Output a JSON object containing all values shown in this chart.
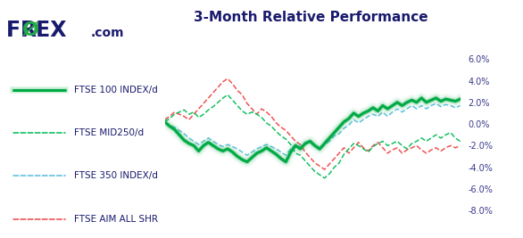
{
  "title": "3-Month Relative Performance",
  "title_fontsize": 11,
  "title_color": "#1a1a6e",
  "background_color": "#ffffff",
  "ylabel_color": "#3a3a8c",
  "yticks": [
    -8.0,
    -6.0,
    -4.0,
    -2.0,
    0.0,
    2.0,
    4.0,
    6.0
  ],
  "ylim": [
    -9.0,
    7.5
  ],
  "n_points": 62,
  "legend_items": [
    {
      "label": "FTSE 100 INDEX/d",
      "color": "#00aa44",
      "linestyle": "-",
      "linewidth": 2.2
    },
    {
      "label": "FTSE MID250/d",
      "color": "#00bb55",
      "linestyle": "--",
      "linewidth": 1.1
    },
    {
      "label": "FTSE 350 INDEX/d",
      "color": "#55bbdd",
      "linestyle": "--",
      "linewidth": 1.1
    },
    {
      "label": "FTSE AIM ALL SHR",
      "color": "#ee4444",
      "linestyle": "--",
      "linewidth": 1.1
    }
  ],
  "ftse100_data": [
    0.2,
    -0.2,
    -0.5,
    -1.0,
    -1.5,
    -1.8,
    -2.0,
    -2.5,
    -2.0,
    -1.7,
    -2.0,
    -2.3,
    -2.5,
    -2.3,
    -2.6,
    -3.0,
    -3.3,
    -3.5,
    -3.1,
    -2.7,
    -2.5,
    -2.2,
    -2.5,
    -2.8,
    -3.2,
    -3.5,
    -2.6,
    -2.0,
    -2.3,
    -1.8,
    -1.6,
    -2.0,
    -2.3,
    -1.8,
    -1.3,
    -0.8,
    -0.3,
    0.2,
    0.5,
    1.0,
    0.7,
    1.0,
    1.2,
    1.5,
    1.2,
    1.7,
    1.4,
    1.7,
    2.0,
    1.7,
    2.0,
    2.2,
    2.0,
    2.4,
    2.0,
    2.2,
    2.4,
    2.1,
    2.3,
    2.2,
    2.1,
    2.3
  ],
  "ftse_mid250_data": [
    0.2,
    0.5,
    0.9,
    1.1,
    1.3,
    0.9,
    1.1,
    0.6,
    0.9,
    1.3,
    1.6,
    2.0,
    2.4,
    2.7,
    2.2,
    1.7,
    1.2,
    0.9,
    1.1,
    0.9,
    0.6,
    0.1,
    -0.2,
    -0.7,
    -1.1,
    -1.4,
    -1.9,
    -2.7,
    -2.9,
    -3.4,
    -3.9,
    -4.4,
    -4.7,
    -5.0,
    -4.6,
    -4.0,
    -3.6,
    -2.8,
    -2.3,
    -1.8,
    -2.0,
    -2.3,
    -2.6,
    -2.1,
    -1.8,
    -1.6,
    -2.0,
    -1.8,
    -1.6,
    -2.0,
    -2.3,
    -1.8,
    -1.6,
    -1.3,
    -1.6,
    -1.3,
    -1.0,
    -1.3,
    -1.0,
    -0.8,
    -1.3,
    -1.6
  ],
  "ftse350_data": [
    0.1,
    -0.1,
    -0.3,
    -0.6,
    -0.9,
    -1.3,
    -1.6,
    -1.9,
    -1.6,
    -1.3,
    -1.6,
    -1.9,
    -2.1,
    -1.9,
    -2.1,
    -2.3,
    -2.6,
    -2.9,
    -2.6,
    -2.3,
    -2.1,
    -1.9,
    -2.1,
    -2.3,
    -2.6,
    -2.9,
    -2.3,
    -1.9,
    -2.1,
    -1.9,
    -1.6,
    -2.1,
    -2.4,
    -1.9,
    -1.6,
    -1.1,
    -0.9,
    -0.4,
    -0.1,
    0.4,
    0.1,
    0.4,
    0.7,
    0.9,
    0.7,
    1.1,
    0.7,
    1.1,
    1.4,
    1.1,
    1.4,
    1.7,
    1.4,
    1.7,
    1.4,
    1.7,
    1.9,
    1.6,
    1.8,
    1.7,
    1.5,
    1.7
  ],
  "ftse_aim_data": [
    0.4,
    0.7,
    1.1,
    0.9,
    0.7,
    0.4,
    0.9,
    1.4,
    1.9,
    2.4,
    2.9,
    3.4,
    3.9,
    4.2,
    3.7,
    3.1,
    2.7,
    1.9,
    1.4,
    0.9,
    1.4,
    1.1,
    0.7,
    0.1,
    -0.3,
    -0.6,
    -1.1,
    -1.6,
    -1.9,
    -2.6,
    -3.1,
    -3.6,
    -3.9,
    -4.2,
    -3.7,
    -3.2,
    -2.7,
    -2.2,
    -2.7,
    -2.2,
    -1.7,
    -2.2,
    -2.5,
    -2.0,
    -1.7,
    -2.2,
    -2.7,
    -2.4,
    -2.2,
    -2.7,
    -2.4,
    -2.2,
    -2.0,
    -2.4,
    -2.7,
    -2.4,
    -2.2,
    -2.5,
    -2.2,
    -2.0,
    -2.2,
    -2.0
  ]
}
